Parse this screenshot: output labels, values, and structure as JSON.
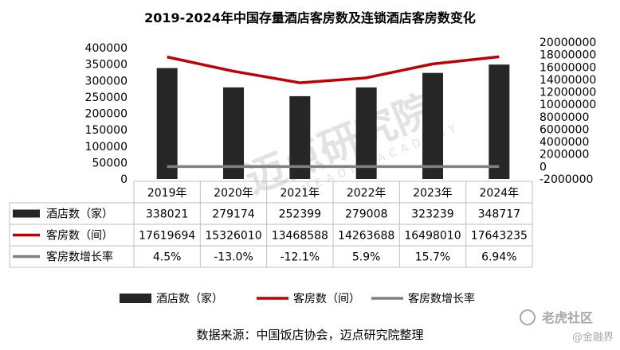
{
  "chart_data": {
    "type": "bar",
    "title": "2019-2024年中国存量酒店客房数及连锁酒店客房数变化",
    "categories": [
      "2019年",
      "2020年",
      "2021年",
      "2022年",
      "2023年",
      "2024年"
    ],
    "series": [
      {
        "name": "酒店数（家）",
        "type": "bar",
        "axis": "left",
        "color": "#262626",
        "values": [
          338021,
          279174,
          252399,
          279008,
          323239,
          348717
        ]
      },
      {
        "name": "客房数（间）",
        "type": "line",
        "axis": "right",
        "color": "#c00000",
        "values": [
          17619694,
          15326010,
          13468588,
          14263688,
          16498010,
          17643235
        ]
      },
      {
        "name": "客房数增长率",
        "type": "line",
        "axis": "right",
        "color": "#808080",
        "values": [
          0.045,
          -0.13,
          -0.121,
          0.059,
          0.157,
          0.0694
        ],
        "labels": [
          "4.5%",
          "-13.0%",
          "-12.1%",
          "5.9%",
          "15.7%",
          "6.94%"
        ]
      }
    ],
    "y_left": {
      "ylim": [
        0,
        400000
      ],
      "ticks": [
        "0",
        "50000",
        "100000",
        "150000",
        "200000",
        "250000",
        "300000",
        "350000",
        "400000"
      ]
    },
    "y_right": {
      "ylim": [
        -2000000,
        20000000
      ],
      "ticks": [
        "-2000000",
        "0",
        "2000000",
        "4000000",
        "6000000",
        "8000000",
        "10000000",
        "12000000",
        "14000000",
        "16000000",
        "18000000",
        "20000000"
      ]
    },
    "legend": {
      "position": "bottom"
    },
    "grid": false
  },
  "source_note": "数据来源：中国饭店协会，迈点研究院整理",
  "watermark": {
    "text": "迈点研究院",
    "subtext": "MEADIN ACADEMY"
  },
  "brand": {
    "main": "老虎社区",
    "sub": "@金融界"
  }
}
